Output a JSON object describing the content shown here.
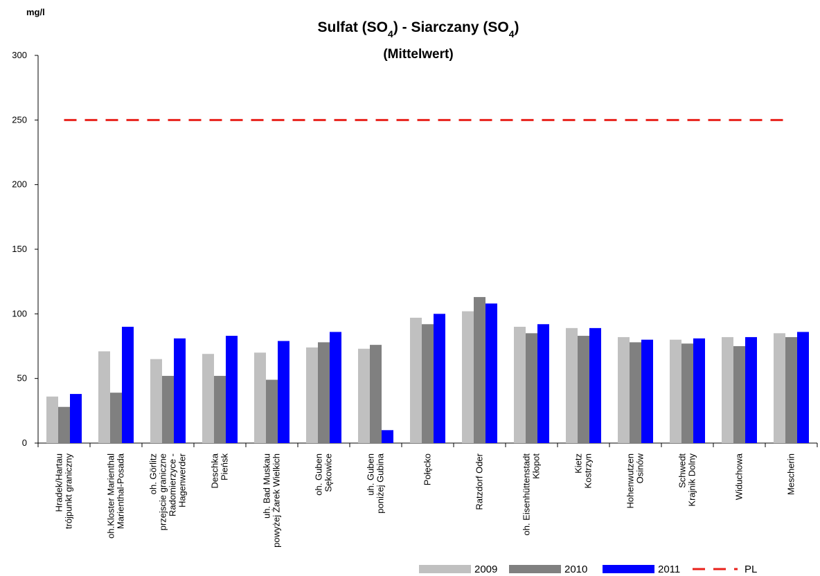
{
  "chart_data": {
    "type": "bar",
    "title": [
      "Sulfat (SO",
      "4",
      ") - Siarczany (SO",
      "4",
      ")"
    ],
    "subtitle": "(Mittelwert)",
    "y_label": "mg/l",
    "categories": [
      [
        "Hradek/Hartau",
        "trójpunkt graniczny"
      ],
      [
        "oh.Kloster Marienthal",
        "Marienthal-Posada"
      ],
      [
        "oh. Görlitz",
        "przejscie graniczne",
        "Radomierzyce -",
        "Hagenwerder"
      ],
      [
        "Deschka",
        "Pieńsk"
      ],
      [
        "uh. Bad Muskau",
        "powyżej Żarek Wielkich"
      ],
      [
        "oh. Guben",
        "Sękowice"
      ],
      [
        "uh. Guben",
        "poniżej Gubina"
      ],
      [
        "Połęcko"
      ],
      [
        "Ratzdorf Oder"
      ],
      [
        "oh. Eisenhüttenstadt",
        "Kłopot"
      ],
      [
        "Kietz",
        "Kostrzyn"
      ],
      [
        "Hohenwutzen",
        "Osinów"
      ],
      [
        "Schwedt",
        "Krajnik Dolny"
      ],
      [
        "Widuchowa"
      ],
      [
        "Mescherin"
      ]
    ],
    "series": [
      {
        "name": "2009",
        "color": "#c0c0c0",
        "values": [
          36,
          71,
          65,
          69,
          70,
          74,
          73,
          97,
          102,
          90,
          89,
          82,
          80,
          82,
          85
        ]
      },
      {
        "name": "2010",
        "color": "#808080",
        "values": [
          28,
          39,
          52,
          52,
          49,
          78,
          76,
          92,
          113,
          85,
          83,
          78,
          77,
          75,
          82
        ]
      },
      {
        "name": "2011",
        "color": "#0000ff",
        "values": [
          38,
          90,
          81,
          83,
          79,
          86,
          10,
          100,
          108,
          92,
          89,
          80,
          81,
          82,
          86
        ]
      }
    ],
    "reference_lines": [
      {
        "name": "PL",
        "value": 250,
        "color": "#e8201a"
      }
    ],
    "ylim": [
      0,
      300
    ],
    "yticks": [
      0,
      50,
      100,
      150,
      200,
      250,
      300
    ]
  }
}
